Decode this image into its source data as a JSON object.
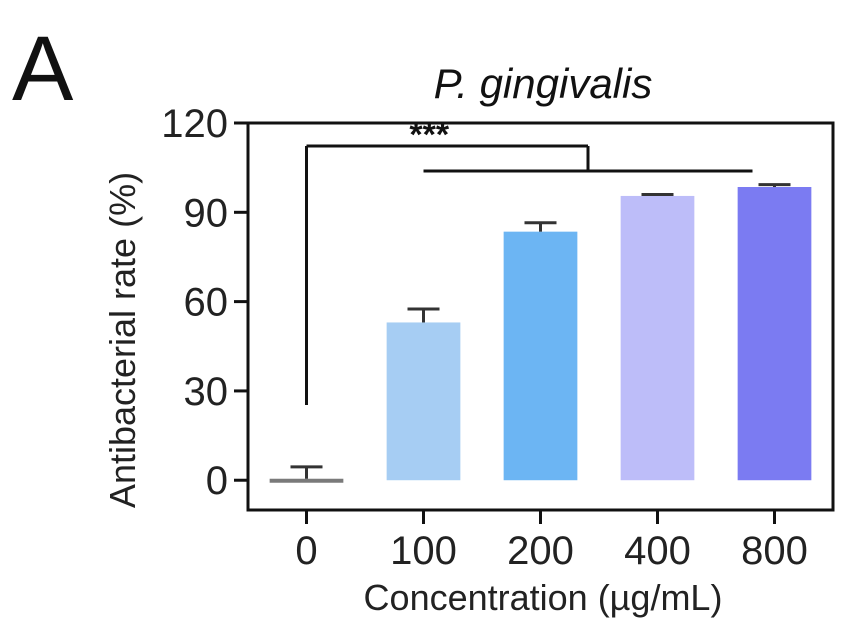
{
  "chart_data": {
    "type": "bar",
    "panel_label": "A",
    "title": "P. gingivalis",
    "xlabel": "Concentration (µg/mL)",
    "ylabel": "Antibacterial rate (%)",
    "categories": [
      "0",
      "100",
      "200",
      "400",
      "800"
    ],
    "values": [
      0.5,
      53,
      83.5,
      95.5,
      98.5
    ],
    "errors": [
      4,
      4.5,
      3,
      0.5,
      0.8
    ],
    "colors": [
      "#7a7a7a",
      "#a6cdf3",
      "#6cb5f3",
      "#bdbdf9",
      "#7b7bf2"
    ],
    "yticks": [
      "0",
      "30",
      "60",
      "90",
      "120"
    ],
    "ylim": [
      -10,
      120
    ],
    "significance": "***",
    "grid": false
  }
}
